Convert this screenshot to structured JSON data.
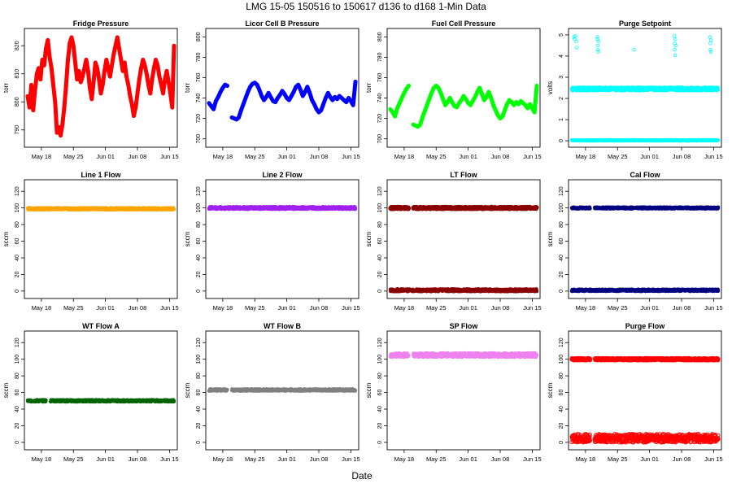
{
  "page": {
    "title": "LMG   15-05    150516 to 150617    d136 to d168   1-Min Data",
    "xlabel": "Date"
  },
  "x_ticks": [
    {
      "day": 3,
      "label": "May 18"
    },
    {
      "day": 10,
      "label": "May 25"
    },
    {
      "day": 17,
      "label": "Jun 01"
    },
    {
      "day": 24,
      "label": "Jun 08"
    },
    {
      "day": 31,
      "label": "Jun 15"
    }
  ],
  "chart_data": [
    {
      "type": "scatter",
      "title": "Fridge Pressure",
      "ylabel": "torr",
      "color": "#ff0000",
      "xlim": [
        0,
        32
      ],
      "ylim": [
        785,
        825
      ],
      "yticks": [
        790,
        800,
        810,
        820
      ],
      "series": [
        {
          "name": "Fridge Pressure",
          "x": [
            0,
            0.4,
            0.8,
            1.2,
            1.6,
            2.0,
            2.4,
            2.8,
            3.2,
            3.6,
            4.0,
            4.4,
            4.8,
            5.2,
            5.6,
            6.0,
            6.4,
            6.8,
            7.2,
            7.6,
            8.0,
            8.4,
            8.8,
            9.2,
            9.6,
            10.0,
            10.4,
            10.8,
            11.2,
            11.6,
            12.0,
            12.4,
            12.8,
            13.2,
            13.6,
            14.0,
            14.4,
            14.8,
            15.2,
            15.6,
            16.0,
            16.4,
            16.8,
            17.2,
            17.6,
            18.0,
            18.4,
            18.8,
            19.2,
            19.6,
            20.0,
            20.4,
            20.8,
            21.2,
            21.6,
            22.0,
            22.4,
            22.8,
            23.2,
            23.6,
            24.0,
            24.4,
            24.8,
            25.2,
            25.6,
            26.0,
            26.4,
            26.8,
            27.2,
            27.6,
            28.0,
            28.4,
            28.8,
            29.2,
            29.6,
            30.0,
            30.4,
            30.8,
            31.2,
            31.6,
            32.0
          ],
          "y": [
            802,
            798,
            806,
            797,
            804,
            810,
            812,
            808,
            815,
            813,
            819,
            822,
            816,
            812,
            806,
            800,
            789,
            791,
            788,
            792,
            798,
            806,
            815,
            821,
            823,
            820,
            814,
            808,
            811,
            807,
            809,
            812,
            815,
            811,
            805,
            801,
            807,
            814,
            812,
            808,
            803,
            806,
            811,
            815,
            812,
            809,
            813,
            817,
            820,
            823,
            819,
            815,
            811,
            814,
            809,
            806,
            802,
            799,
            795,
            798,
            803,
            808,
            812,
            815,
            813,
            810,
            806,
            803,
            808,
            812,
            815,
            813,
            809,
            806,
            803,
            808,
            811,
            807,
            803,
            798,
            820
          ]
        }
      ]
    },
    {
      "type": "scatter",
      "title": "Licor Cell B Pressure",
      "ylabel": "torr",
      "color": "#0000ff",
      "xlim": [
        0,
        32
      ],
      "ylim": [
        695,
        805
      ],
      "yticks": [
        700,
        720,
        740,
        760,
        780,
        800
      ],
      "series": [
        {
          "name": "Licor Cell B Pressure",
          "x": [
            0,
            0.5,
            1.0,
            1.5,
            2.0,
            2.5,
            3.0,
            3.5,
            4.0,
            5.0,
            5.5,
            6.0,
            6.5,
            7.0,
            7.5,
            8.0,
            8.5,
            9.0,
            9.5,
            10.0,
            10.5,
            11.0,
            11.5,
            12.0,
            12.5,
            13.0,
            13.5,
            14.0,
            14.5,
            15.0,
            15.5,
            16.0,
            16.5,
            17.0,
            17.5,
            18.0,
            18.5,
            19.0,
            19.5,
            20.0,
            20.5,
            21.0,
            21.5,
            22.0,
            22.5,
            23.0,
            23.5,
            24.0,
            24.5,
            25.0,
            25.5,
            26.0,
            26.5,
            27.0,
            27.5,
            28.0,
            28.5,
            29.0,
            29.5,
            30.0,
            30.5,
            31.0,
            31.5,
            32.0
          ],
          "y": [
            735,
            732,
            729,
            737,
            741,
            746,
            750,
            753,
            752,
            721,
            720,
            719,
            721,
            728,
            734,
            740,
            746,
            751,
            754,
            755,
            753,
            748,
            742,
            738,
            741,
            745,
            741,
            737,
            736,
            740,
            743,
            747,
            744,
            740,
            738,
            742,
            746,
            751,
            753,
            748,
            742,
            746,
            751,
            745,
            738,
            734,
            729,
            726,
            728,
            734,
            740,
            745,
            741,
            738,
            741,
            739,
            742,
            740,
            738,
            736,
            740,
            737,
            733,
            756
          ]
        }
      ]
    },
    {
      "type": "scatter",
      "title": "Fuel Cell Pressure",
      "ylabel": "torr",
      "color": "#00ff00",
      "xlim": [
        0,
        32
      ],
      "ylim": [
        695,
        805
      ],
      "yticks": [
        700,
        720,
        740,
        760,
        780,
        800
      ],
      "series": [
        {
          "name": "Fuel Cell Pressure",
          "x": [
            0,
            0.5,
            1.0,
            1.5,
            2.0,
            2.5,
            3.0,
            3.5,
            4.0,
            5.0,
            5.5,
            6.0,
            6.5,
            7.0,
            7.5,
            8.0,
            8.5,
            9.0,
            9.5,
            10.0,
            10.5,
            11.0,
            11.5,
            12.0,
            12.5,
            13.0,
            13.5,
            14.0,
            14.5,
            15.0,
            15.5,
            16.0,
            16.5,
            17.0,
            17.5,
            18.0,
            18.5,
            19.0,
            19.5,
            20.0,
            20.5,
            21.0,
            21.5,
            22.0,
            22.5,
            23.0,
            23.5,
            24.0,
            24.5,
            25.0,
            25.5,
            26.0,
            26.5,
            27.0,
            27.5,
            28.0,
            28.5,
            29.0,
            29.5,
            30.0,
            30.5,
            31.0,
            31.5,
            32.0
          ],
          "y": [
            729,
            726,
            722,
            730,
            735,
            740,
            745,
            749,
            752,
            714,
            713,
            712,
            714,
            721,
            727,
            733,
            739,
            745,
            750,
            752,
            750,
            745,
            739,
            733,
            736,
            740,
            736,
            732,
            731,
            735,
            738,
            742,
            739,
            735,
            733,
            737,
            741,
            746,
            750,
            744,
            738,
            741,
            746,
            740,
            733,
            728,
            723,
            720,
            722,
            728,
            734,
            738,
            736,
            733,
            736,
            734,
            737,
            735,
            733,
            730,
            734,
            730,
            726,
            752
          ]
        }
      ]
    },
    {
      "type": "scatter",
      "title": "Purge Setpoint",
      "ylabel": "volts",
      "color": "#00ffff",
      "xlim": [
        0,
        32
      ],
      "ylim": [
        -0.15,
        5.15
      ],
      "yticks": [
        0,
        1,
        2,
        3,
        4,
        5
      ],
      "bands": [
        {
          "value": 2.45,
          "from": 0,
          "to": 32,
          "spread": 0.08
        },
        {
          "value": 0.02,
          "from": 0,
          "to": 32,
          "spread": 0.02
        }
      ],
      "series": [
        {
          "name": "Purge Setpoint spikes",
          "x": [
            0.5,
            0.6,
            0.8,
            1.0,
            1.1,
            5.6,
            5.6,
            5.7,
            5.7,
            5.8,
            5.8,
            13.6,
            22.4,
            22.5,
            22.5,
            22.6,
            22.6,
            22.7,
            30.2,
            30.3,
            30.3,
            30.4,
            30.4
          ],
          "y": [
            4.9,
            4.8,
            4.95,
            4.7,
            4.4,
            4.9,
            4.8,
            4.5,
            4.3,
            4.2,
            4.7,
            4.3,
            4.95,
            4.6,
            4.3,
            4.05,
            4.8,
            4.5,
            4.9,
            4.6,
            4.3,
            4.2,
            4.75
          ]
        }
      ]
    },
    {
      "type": "scatter",
      "title": "Line 1 Flow",
      "ylabel": "sccm",
      "color": "#ffa500",
      "xlim": [
        0,
        32
      ],
      "ylim": [
        -5,
        130
      ],
      "yticks": [
        0,
        20,
        40,
        60,
        80,
        100,
        120
      ],
      "bands": [
        {
          "value": 99,
          "from": 0,
          "to": 32,
          "spread": 1.2
        }
      ]
    },
    {
      "type": "scatter",
      "title": "Line 2 Flow",
      "ylabel": "sccm",
      "color": "#a020f0",
      "xlim": [
        0,
        32
      ],
      "ylim": [
        -5,
        130
      ],
      "yticks": [
        0,
        20,
        40,
        60,
        80,
        100,
        120
      ],
      "bands": [
        {
          "value": 100,
          "from": 0,
          "to": 32,
          "spread": 1.5
        }
      ]
    },
    {
      "type": "scatter",
      "title": "LT Flow",
      "ylabel": "sccm",
      "color": "#8b0000",
      "xlim": [
        0,
        32
      ],
      "ylim": [
        -5,
        130
      ],
      "yticks": [
        0,
        20,
        40,
        60,
        80,
        100,
        120
      ],
      "bands": [
        {
          "value": 100,
          "from": 0,
          "to": 4.0,
          "spread": 1.2,
          "style": "open"
        },
        {
          "value": 100,
          "from": 5.0,
          "to": 32,
          "spread": 1.2,
          "style": "open"
        },
        {
          "value": 1,
          "from": 0,
          "to": 32,
          "spread": 1.5
        }
      ]
    },
    {
      "type": "scatter",
      "title": "Cal Flow",
      "ylabel": "sccm",
      "color": "#000080",
      "xlim": [
        0,
        32
      ],
      "ylim": [
        -5,
        130
      ],
      "yticks": [
        0,
        20,
        40,
        60,
        80,
        100,
        120
      ],
      "bands": [
        {
          "value": 100,
          "from": 0,
          "to": 4.0,
          "spread": 1.0
        },
        {
          "value": 100,
          "from": 5.0,
          "to": 32,
          "spread": 1.0
        },
        {
          "value": 1,
          "from": 0,
          "to": 32,
          "spread": 1.2
        }
      ]
    },
    {
      "type": "scatter",
      "title": "WT Flow A",
      "ylabel": "sccm",
      "color": "#006400",
      "xlim": [
        0,
        32
      ],
      "ylim": [
        -5,
        130
      ],
      "yticks": [
        0,
        20,
        40,
        60,
        80,
        100,
        120
      ],
      "bands": [
        {
          "value": 50,
          "from": 0,
          "to": 4.0,
          "spread": 1.2
        },
        {
          "value": 50,
          "from": 5.0,
          "to": 32,
          "spread": 1.2
        }
      ]
    },
    {
      "type": "scatter",
      "title": "WT Flow B",
      "ylabel": "sccm",
      "color": "#808080",
      "xlim": [
        0,
        32
      ],
      "ylim": [
        -5,
        130
      ],
      "yticks": [
        0,
        20,
        40,
        60,
        80,
        100,
        120
      ],
      "bands": [
        {
          "value": 63,
          "from": 0,
          "to": 4.0,
          "spread": 1.2
        },
        {
          "value": 63,
          "from": 5.0,
          "to": 32,
          "spread": 1.2
        }
      ]
    },
    {
      "type": "scatter",
      "title": "SP Flow",
      "ylabel": "sccm",
      "color": "#ee82ee",
      "xlim": [
        0,
        32
      ],
      "ylim": [
        -5,
        130
      ],
      "yticks": [
        0,
        20,
        40,
        60,
        80,
        100,
        120
      ],
      "bands": [
        {
          "value": 105,
          "from": 0,
          "to": 4.0,
          "spread": 2.5
        },
        {
          "value": 105,
          "from": 5.0,
          "to": 32,
          "spread": 2.5
        }
      ]
    },
    {
      "type": "scatter",
      "title": "Purge Flow",
      "ylabel": "sccm",
      "color": "#ff0000",
      "xlim": [
        0,
        32
      ],
      "ylim": [
        -5,
        130
      ],
      "yticks": [
        0,
        20,
        40,
        60,
        80,
        100,
        120
      ],
      "bands": [
        {
          "value": 100,
          "from": 0,
          "to": 4.0,
          "spread": 1.2,
          "style": "open"
        },
        {
          "value": 100,
          "from": 5.0,
          "to": 32,
          "spread": 1.2,
          "style": "open"
        },
        {
          "value": 5,
          "from": 0,
          "to": 4.0,
          "spread": 5,
          "style": "open"
        },
        {
          "value": 5,
          "from": 5.0,
          "to": 32,
          "spread": 5,
          "style": "open"
        }
      ]
    }
  ]
}
